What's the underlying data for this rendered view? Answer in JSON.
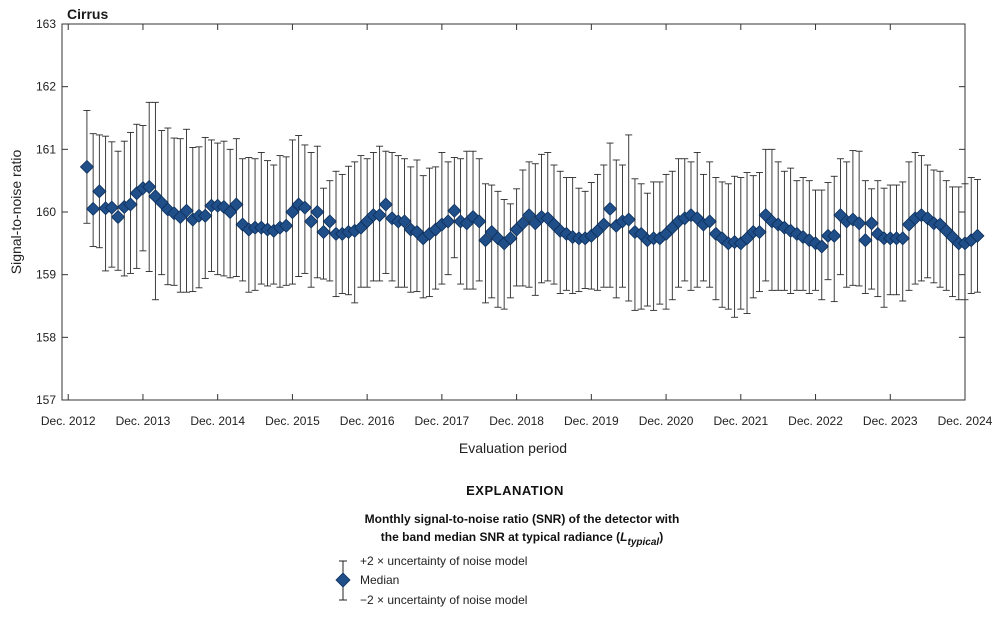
{
  "chart_data": {
    "type": "scatter",
    "title": "Cirrus",
    "xlabel": "Evaluation period",
    "ylabel": "Signal-to-noise ratio",
    "ylim": [
      157,
      163
    ],
    "yticks": [
      157,
      158,
      159,
      160,
      161,
      162,
      163
    ],
    "xlim": [
      "2012-11",
      "2024-12"
    ],
    "xticks": [
      "Dec. 2012",
      "Dec. 2013",
      "Dec. 2014",
      "Dec. 2015",
      "Dec. 2016",
      "Dec. 2017",
      "Dec. 2018",
      "Dec. 2019",
      "Dec. 2020",
      "Dec. 2021",
      "Dec. 2022",
      "Dec. 2023",
      "Dec. 2024"
    ],
    "grid": false,
    "series": [
      {
        "name": "Median",
        "color": "#1f4e89",
        "marker": "diamond",
        "start": "2013-03",
        "frequency": "monthly",
        "values": [
          160.72,
          160.05,
          160.33,
          160.06,
          160.07,
          159.92,
          160.08,
          160.12,
          160.3,
          160.38,
          160.4,
          160.25,
          160.15,
          160.04,
          159.98,
          159.92,
          160.02,
          159.88,
          159.94,
          159.94,
          160.1,
          160.1,
          160.08,
          160.0,
          160.12,
          159.8,
          159.72,
          159.75,
          159.75,
          159.72,
          159.7,
          159.75,
          159.78,
          160.0,
          160.12,
          160.07,
          159.85,
          160.0,
          159.68,
          159.85,
          159.65,
          159.65,
          159.68,
          159.7,
          159.75,
          159.85,
          159.95,
          159.95,
          160.12,
          159.9,
          159.85,
          159.85,
          159.72,
          159.68,
          159.58,
          159.65,
          159.72,
          159.8,
          159.85,
          160.02,
          159.85,
          159.82,
          159.92,
          159.85,
          159.55,
          159.68,
          159.58,
          159.5,
          159.58,
          159.72,
          159.82,
          159.95,
          159.82,
          159.92,
          159.9,
          159.8,
          159.7,
          159.65,
          159.6,
          159.58,
          159.58,
          159.62,
          159.7,
          159.8,
          160.05,
          159.78,
          159.85,
          159.88,
          159.68,
          159.65,
          159.55,
          159.58,
          159.58,
          159.65,
          159.75,
          159.85,
          159.9,
          159.95,
          159.9,
          159.8,
          159.85,
          159.65,
          159.58,
          159.5,
          159.52,
          159.5,
          159.58,
          159.68,
          159.68,
          159.95,
          159.85,
          159.8,
          159.75,
          159.7,
          159.65,
          159.6,
          159.55,
          159.5,
          159.45,
          159.62,
          159.62,
          159.95,
          159.85,
          159.88,
          159.82,
          159.55,
          159.82,
          159.65,
          159.58,
          159.58,
          159.58,
          159.58,
          159.8,
          159.9,
          159.95,
          159.9,
          159.82,
          159.8,
          159.7,
          159.6,
          159.5,
          159.5,
          159.55,
          159.62
        ],
        "error_plus": [
          0.9,
          1.2,
          0.9,
          1.15,
          1.05,
          1.05,
          1.05,
          1.15,
          1.1,
          1.0,
          1.35,
          1.5,
          1.15,
          1.3,
          1.2,
          1.25,
          1.3,
          1.15,
          1.1,
          1.25,
          1.05,
          1.0,
          1.05,
          1.0,
          1.05,
          1.05,
          1.15,
          1.1,
          1.2,
          1.1,
          1.05,
          1.15,
          1.1,
          1.15,
          1.1,
          1.0,
          1.1,
          1.05,
          0.7,
          0.65,
          1.0,
          0.95,
          1.05,
          1.1,
          1.15,
          1.0,
          1.0,
          1.1,
          0.85,
          1.05,
          1.05,
          1.0,
          1.0,
          1.15,
          1.0,
          1.05,
          1.0,
          1.15,
          0.95,
          0.85,
          1.0,
          1.15,
          1.05,
          1.0,
          0.9,
          0.75,
          0.75,
          0.7,
          0.55,
          0.65,
          0.85,
          0.85,
          0.95,
          1.0,
          1.05,
          0.95,
          0.95,
          0.9,
          0.95,
          0.8,
          0.75,
          0.85,
          0.9,
          0.95,
          1.05,
          1.05,
          0.9,
          1.35,
          0.85,
          0.8,
          0.75,
          0.9,
          0.9,
          0.95,
          0.9,
          1.0,
          0.95,
          0.85,
          1.05,
          0.8,
          0.95,
          0.9,
          0.9,
          0.95,
          1.05,
          1.05,
          1.05,
          0.9,
          0.95,
          1.05,
          1.15,
          1.0,
          0.9,
          1.0,
          0.85,
          0.95,
          0.95,
          0.85,
          0.9,
          0.85,
          0.95,
          0.9,
          0.95,
          1.1,
          1.15,
          0.95,
          0.55,
          0.85,
          0.8,
          0.85,
          0.85,
          0.9,
          1.0,
          1.05,
          0.95,
          0.85,
          0.85,
          0.85,
          0.8,
          0.8,
          0.9,
          0.95,
          1.0,
          0.9
        ],
        "error_minus": [
          0.9,
          0.6,
          0.9,
          1.0,
          0.95,
          0.85,
          1.1,
          1.1,
          1.2,
          1.0,
          1.35,
          1.65,
          1.15,
          1.2,
          1.15,
          1.2,
          1.3,
          1.15,
          1.15,
          1.0,
          1.05,
          1.1,
          1.1,
          1.05,
          1.15,
          0.9,
          1.0,
          1.0,
          0.9,
          0.9,
          0.85,
          0.95,
          0.95,
          1.15,
          1.15,
          1.05,
          1.05,
          1.05,
          0.75,
          0.95,
          1.0,
          0.95,
          1.0,
          1.15,
          0.95,
          1.05,
          1.05,
          1.05,
          1.1,
          1.0,
          1.05,
          1.05,
          1.0,
          0.95,
          0.95,
          1.0,
          0.95,
          0.95,
          0.85,
          0.75,
          1.0,
          1.05,
          1.15,
          0.95,
          1.0,
          1.05,
          1.1,
          1.05,
          0.95,
          0.9,
          1.0,
          1.15,
          1.15,
          1.05,
          1.0,
          0.95,
          1.0,
          0.9,
          0.9,
          0.85,
          0.8,
          0.85,
          0.95,
          1.0,
          1.25,
          1.15,
          1.05,
          1.3,
          1.25,
          1.2,
          1.05,
          1.15,
          1.05,
          1.2,
          1.15,
          1.05,
          1.0,
          1.2,
          1.1,
          0.9,
          1.05,
          1.05,
          1.1,
          1.05,
          1.2,
          1.05,
          1.2,
          1.05,
          0.95,
          1.05,
          1.1,
          1.05,
          1.0,
          1.0,
          0.9,
          0.85,
          0.85,
          0.75,
          0.85,
          0.7,
          1.05,
          0.95,
          1.05,
          1.05,
          1.0,
          0.85,
          1.05,
          1.0,
          1.1,
          0.9,
          0.9,
          1.0,
          1.05,
          1.05,
          1.05,
          0.95,
          0.95,
          1.0,
          0.95,
          0.95,
          0.9,
          0.9,
          0.85,
          0.9
        ]
      }
    ],
    "explanation": {
      "heading": "EXPLANATION",
      "description_line1": "Monthly signal-to-noise ratio (SNR) of the detector with",
      "description_line2_prefix": "the band median SNR at typical radiance (",
      "description_line2_symbol": "L",
      "description_line2_subscript": "typical",
      "description_line2_suffix": ")",
      "plus_label": "+2 × uncertainty of noise model",
      "median_label": "Median",
      "minus_label": "−2 × uncertainty of noise model"
    }
  }
}
